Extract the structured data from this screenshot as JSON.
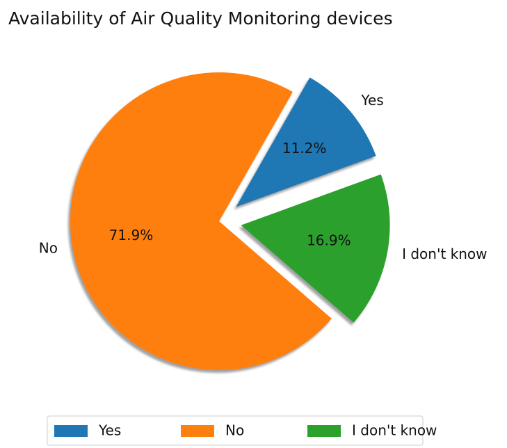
{
  "chart_data": {
    "type": "pie",
    "title": "Availability of Air Quality Monitoring devices",
    "categories": [
      "Yes",
      "No",
      "I don't know"
    ],
    "values": [
      11.2,
      71.9,
      16.9
    ],
    "value_labels": [
      "11.2%",
      "71.9%",
      "16.9%"
    ],
    "colors": [
      "#1f77b4",
      "#ff7f0e",
      "#2ca02c"
    ],
    "explode": [
      0.15,
      0,
      0.15
    ],
    "startangle": 20,
    "shadow": true,
    "counterclock": true,
    "legend": "lower center"
  }
}
